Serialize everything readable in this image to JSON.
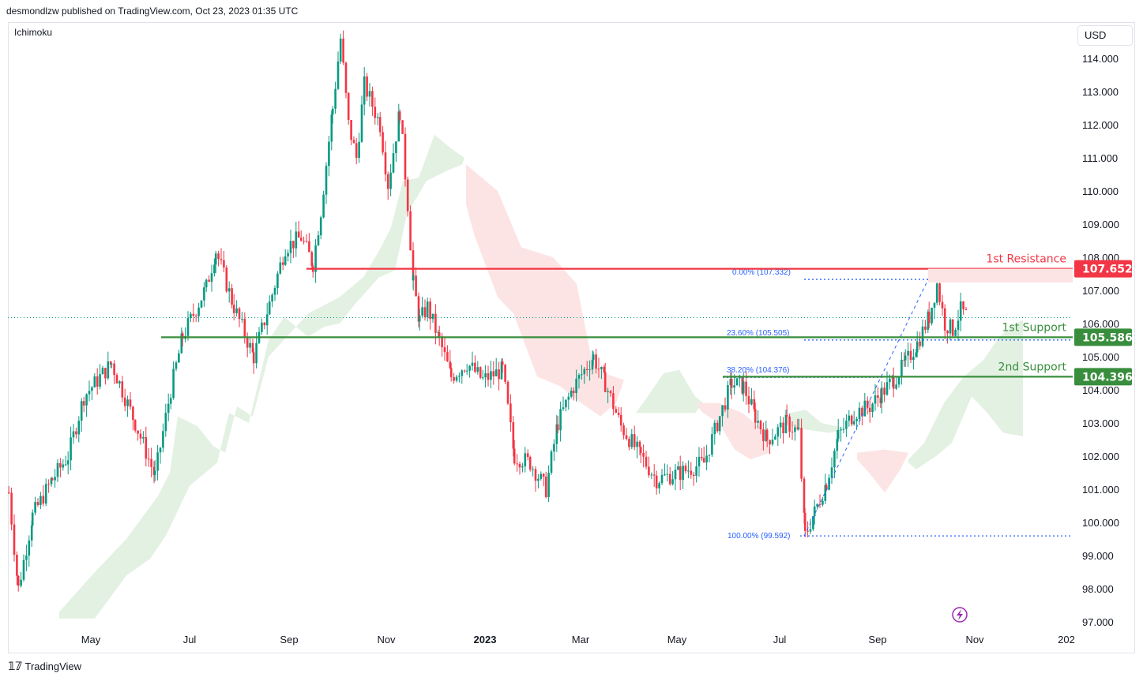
{
  "header": {
    "publisher": "desmondlzw published on TradingView.com, Oct 23, 2023 01:35 UTC"
  },
  "indicator": {
    "name": "Ichimoku"
  },
  "currency": {
    "label": "USD"
  },
  "footer": {
    "logo_icon": "tradingview-logo-icon",
    "brand": "TradingView"
  },
  "colors": {
    "up": "#089981",
    "down": "#f23645",
    "resistance": "#f23645",
    "support": "#388e3c",
    "fib": "#2962ff",
    "cloud_bull": "#e3f1e3",
    "cloud_bear": "#fde4e4"
  },
  "chart_data": {
    "type": "candlestick",
    "y_ticks": [
      "114.000",
      "113.000",
      "112.000",
      "111.000",
      "110.000",
      "109.000",
      "108.000",
      "107.000",
      "106.000",
      "105.000",
      "104.000",
      "103.000",
      "102.000",
      "101.000",
      "100.000",
      "99.000",
      "98.000",
      "97.000"
    ],
    "x_ticks": [
      "May",
      "Jul",
      "Sep",
      "Nov",
      "2023",
      "Mar",
      "May",
      "Jul",
      "Sep",
      "Nov",
      "202"
    ],
    "ylim": [
      96.9,
      114.9
    ],
    "levels": [
      {
        "label": "1st Resistance",
        "price": "107.652",
        "value": 107.652,
        "color": "#f23645",
        "x_start": "Sep 2022"
      },
      {
        "label": "1st Support",
        "price": "105.586",
        "value": 105.586,
        "color": "#388e3c",
        "x_start": "Jun 2022"
      },
      {
        "label": "2nd Support",
        "price": "104.396",
        "value": 104.396,
        "color": "#388e3c",
        "x_start": "Jun 2023"
      }
    ],
    "fibonacci": [
      {
        "label": "0.00% (107.332)",
        "value": 107.332
      },
      {
        "label": "23.60% (105.505)",
        "value": 105.505
      },
      {
        "label": "38.20% (104.376)",
        "value": 104.376
      },
      {
        "label": "100.00% (99.592)",
        "value": 99.592
      }
    ],
    "last_price": 106.18,
    "path": [
      [
        0,
        100.9
      ],
      [
        12,
        98.0
      ],
      [
        30,
        100.2
      ],
      [
        55,
        101.3
      ],
      [
        75,
        102.0
      ],
      [
        95,
        103.8
      ],
      [
        130,
        104.8
      ],
      [
        160,
        103.0
      ],
      [
        185,
        101.4
      ],
      [
        205,
        104.0
      ],
      [
        220,
        105.6
      ],
      [
        250,
        107.1
      ],
      [
        262,
        108.2
      ],
      [
        285,
        106.5
      ],
      [
        310,
        105.0
      ],
      [
        330,
        106.6
      ],
      [
        350,
        108.3
      ],
      [
        370,
        108.6
      ],
      [
        385,
        107.8
      ],
      [
        395,
        109.4
      ],
      [
        410,
        112.5
      ],
      [
        420,
        114.6
      ],
      [
        430,
        112.0
      ],
      [
        440,
        111.0
      ],
      [
        450,
        113.2
      ],
      [
        470,
        112.0
      ],
      [
        480,
        110.2
      ],
      [
        495,
        112.4
      ],
      [
        505,
        109.6
      ],
      [
        512,
        107.2
      ],
      [
        520,
        106.1
      ],
      [
        530,
        106.5
      ],
      [
        545,
        105.5
      ],
      [
        560,
        104.4
      ],
      [
        580,
        104.8
      ],
      [
        600,
        104.3
      ],
      [
        625,
        104.6
      ],
      [
        640,
        102.0
      ],
      [
        660,
        101.8
      ],
      [
        680,
        101.0
      ],
      [
        695,
        103.0
      ],
      [
        715,
        104.1
      ],
      [
        740,
        105.0
      ],
      [
        755,
        104.2
      ],
      [
        775,
        102.9
      ],
      [
        800,
        102.0
      ],
      [
        820,
        101.3
      ],
      [
        850,
        101.5
      ],
      [
        880,
        101.8
      ],
      [
        900,
        103.2
      ],
      [
        915,
        104.2
      ],
      [
        930,
        104.1
      ],
      [
        945,
        103.2
      ],
      [
        960,
        102.5
      ],
      [
        985,
        103.0
      ],
      [
        1000,
        102.7
      ],
      [
        1008,
        99.6
      ],
      [
        1020,
        100.3
      ],
      [
        1035,
        101.2
      ],
      [
        1050,
        102.6
      ],
      [
        1070,
        103.3
      ],
      [
        1090,
        103.5
      ],
      [
        1105,
        103.9
      ],
      [
        1120,
        104.3
      ],
      [
        1135,
        104.8
      ],
      [
        1150,
        105.4
      ],
      [
        1165,
        106.2
      ],
      [
        1175,
        107.2
      ],
      [
        1185,
        106.0
      ],
      [
        1195,
        105.8
      ],
      [
        1205,
        106.4
      ],
      [
        1215,
        106.18
      ]
    ],
    "cloud": [
      {
        "type": "bull",
        "points": [
          [
            65,
            97.3
          ],
          [
            110,
            98.5
          ],
          [
            150,
            99.5
          ],
          [
            190,
            100.8
          ],
          [
            205,
            101.5
          ],
          [
            215,
            103.2
          ],
          [
            240,
            102.9
          ],
          [
            260,
            102.3
          ],
          [
            275,
            102.1
          ],
          [
            290,
            103.5
          ],
          [
            310,
            103.2
          ],
          [
            330,
            105.0
          ],
          [
            380,
            106.3
          ],
          [
            420,
            106.8
          ],
          [
            450,
            107.4
          ],
          [
            470,
            108.2
          ],
          [
            485,
            108.9
          ],
          [
            500,
            110.3
          ],
          [
            520,
            110.4
          ],
          [
            540,
            111.7
          ],
          [
            560,
            111.3
          ],
          [
            578,
            111.0
          ],
          [
            575,
            110.8
          ],
          [
            555,
            110.6
          ],
          [
            530,
            110.3
          ],
          [
            505,
            109.3
          ],
          [
            490,
            107.6
          ],
          [
            470,
            107.4
          ],
          [
            440,
            106.6
          ],
          [
            420,
            106.0
          ],
          [
            400,
            105.9
          ],
          [
            380,
            105.6
          ],
          [
            350,
            106.2
          ],
          [
            330,
            105.5
          ],
          [
            320,
            104.5
          ],
          [
            305,
            103.0
          ],
          [
            280,
            103.3
          ],
          [
            265,
            101.8
          ],
          [
            250,
            101.5
          ],
          [
            230,
            101.1
          ],
          [
            200,
            99.6
          ],
          [
            180,
            98.9
          ],
          [
            150,
            98.4
          ],
          [
            110,
            97.1
          ],
          [
            65,
            97.1
          ]
        ]
      },
      {
        "type": "bear",
        "points": [
          [
            580,
            110.8
          ],
          [
            620,
            110.0
          ],
          [
            650,
            108.3
          ],
          [
            690,
            108.0
          ],
          [
            720,
            107.2
          ],
          [
            740,
            104.8
          ],
          [
            755,
            104.5
          ],
          [
            780,
            104.3
          ],
          [
            770,
            103.6
          ],
          [
            750,
            103.2
          ],
          [
            720,
            103.7
          ],
          [
            700,
            104.1
          ],
          [
            670,
            104.4
          ],
          [
            640,
            106.3
          ],
          [
            620,
            106.8
          ],
          [
            590,
            108.7
          ],
          [
            580,
            109.6
          ]
        ]
      },
      {
        "type": "bull",
        "points": [
          [
            795,
            103.3
          ],
          [
            810,
            103.8
          ],
          [
            830,
            104.5
          ],
          [
            850,
            104.6
          ],
          [
            870,
            103.8
          ],
          [
            880,
            103.6
          ],
          [
            870,
            103.3
          ],
          [
            840,
            103.3
          ],
          [
            810,
            103.3
          ]
        ]
      },
      {
        "type": "bear",
        "points": [
          [
            870,
            103.6
          ],
          [
            900,
            103.6
          ],
          [
            930,
            103.3
          ],
          [
            960,
            102.7
          ],
          [
            965,
            102.1
          ],
          [
            940,
            101.9
          ],
          [
            920,
            102.2
          ],
          [
            900,
            103.0
          ],
          [
            880,
            103.3
          ]
        ]
      },
      {
        "type": "bull",
        "points": [
          [
            990,
            103.3
          ],
          [
            1010,
            103.4
          ],
          [
            1030,
            103.0
          ],
          [
            1050,
            102.9
          ],
          [
            1060,
            102.8
          ],
          [
            1040,
            102.7
          ],
          [
            1010,
            102.8
          ],
          [
            990,
            102.9
          ]
        ]
      },
      {
        "type": "bear",
        "points": [
          [
            1075,
            102.1
          ],
          [
            1110,
            102.2
          ],
          [
            1140,
            102.1
          ],
          [
            1130,
            101.6
          ],
          [
            1110,
            100.9
          ],
          [
            1090,
            101.5
          ],
          [
            1075,
            101.9
          ]
        ]
      },
      {
        "type": "bull",
        "points": [
          [
            1140,
            101.9
          ],
          [
            1160,
            102.4
          ],
          [
            1185,
            103.6
          ],
          [
            1210,
            104.4
          ],
          [
            1235,
            104.9
          ],
          [
            1255,
            105.6
          ],
          [
            1275,
            106.0
          ],
          [
            1285,
            106.1
          ],
          [
            1285,
            102.6
          ],
          [
            1260,
            102.7
          ],
          [
            1240,
            103.3
          ],
          [
            1220,
            103.8
          ],
          [
            1195,
            102.4
          ],
          [
            1175,
            102.0
          ],
          [
            1150,
            101.6
          ],
          [
            1140,
            101.8
          ]
        ]
      }
    ]
  }
}
